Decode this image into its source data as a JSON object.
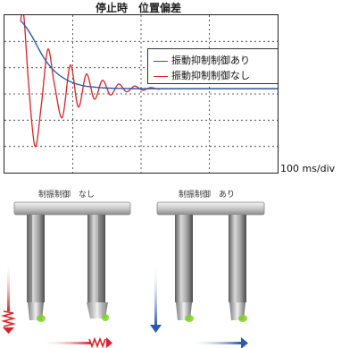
{
  "chart_data": {
    "type": "line",
    "title": "停止時　位置偏差",
    "xlabel": "",
    "ylabel": "",
    "grid": true,
    "legend_position": "top-right",
    "time_scale_label": "100 ms/div",
    "series": [
      {
        "name": "振動抑制制御あり",
        "color": "#2a5ca8",
        "points": [
          [
            0.0,
            1.3
          ],
          [
            0.2,
            1.15
          ],
          [
            0.4,
            0.95
          ],
          [
            0.6,
            0.72
          ],
          [
            0.8,
            0.52
          ],
          [
            1.0,
            0.37
          ],
          [
            1.2,
            0.26
          ],
          [
            1.4,
            0.18
          ],
          [
            1.6,
            0.12
          ],
          [
            1.8,
            0.08
          ],
          [
            2.0,
            0.05
          ],
          [
            2.3,
            0.03
          ],
          [
            2.6,
            0.015
          ],
          [
            3.0,
            0.006
          ],
          [
            3.5,
            0.0
          ],
          [
            4.5,
            0.0
          ],
          [
            6.0,
            0.0
          ],
          [
            7.0,
            0.0
          ],
          [
            8.0,
            0.0
          ]
        ]
      },
      {
        "name": "振動抑制制御なし",
        "color": "#d8232a",
        "points": [
          [
            0.0,
            1.3
          ],
          [
            0.1,
            1.4
          ],
          [
            0.25,
            0.1
          ],
          [
            0.45,
            -1.1
          ],
          [
            0.65,
            -0.3
          ],
          [
            0.85,
            0.75
          ],
          [
            1.05,
            0.1
          ],
          [
            1.3,
            -0.55
          ],
          [
            1.55,
            0.45
          ],
          [
            1.8,
            -0.35
          ],
          [
            2.05,
            0.28
          ],
          [
            2.3,
            -0.2
          ],
          [
            2.55,
            0.16
          ],
          [
            2.8,
            -0.12
          ],
          [
            3.05,
            0.09
          ],
          [
            3.3,
            -0.06
          ],
          [
            3.55,
            0.05
          ],
          [
            3.8,
            -0.03
          ],
          [
            4.05,
            0.02
          ],
          [
            4.3,
            -0.01
          ],
          [
            4.6,
            0.0
          ],
          [
            8.0,
            0.0
          ]
        ]
      }
    ]
  },
  "labels": {
    "without_control": "制振制御　なし",
    "with_control": "制振制御　あり"
  },
  "colors": {
    "vibration_red": "#d8232a",
    "motion_blue": "#2a5ca8",
    "indicator_green": "#7ed321"
  }
}
